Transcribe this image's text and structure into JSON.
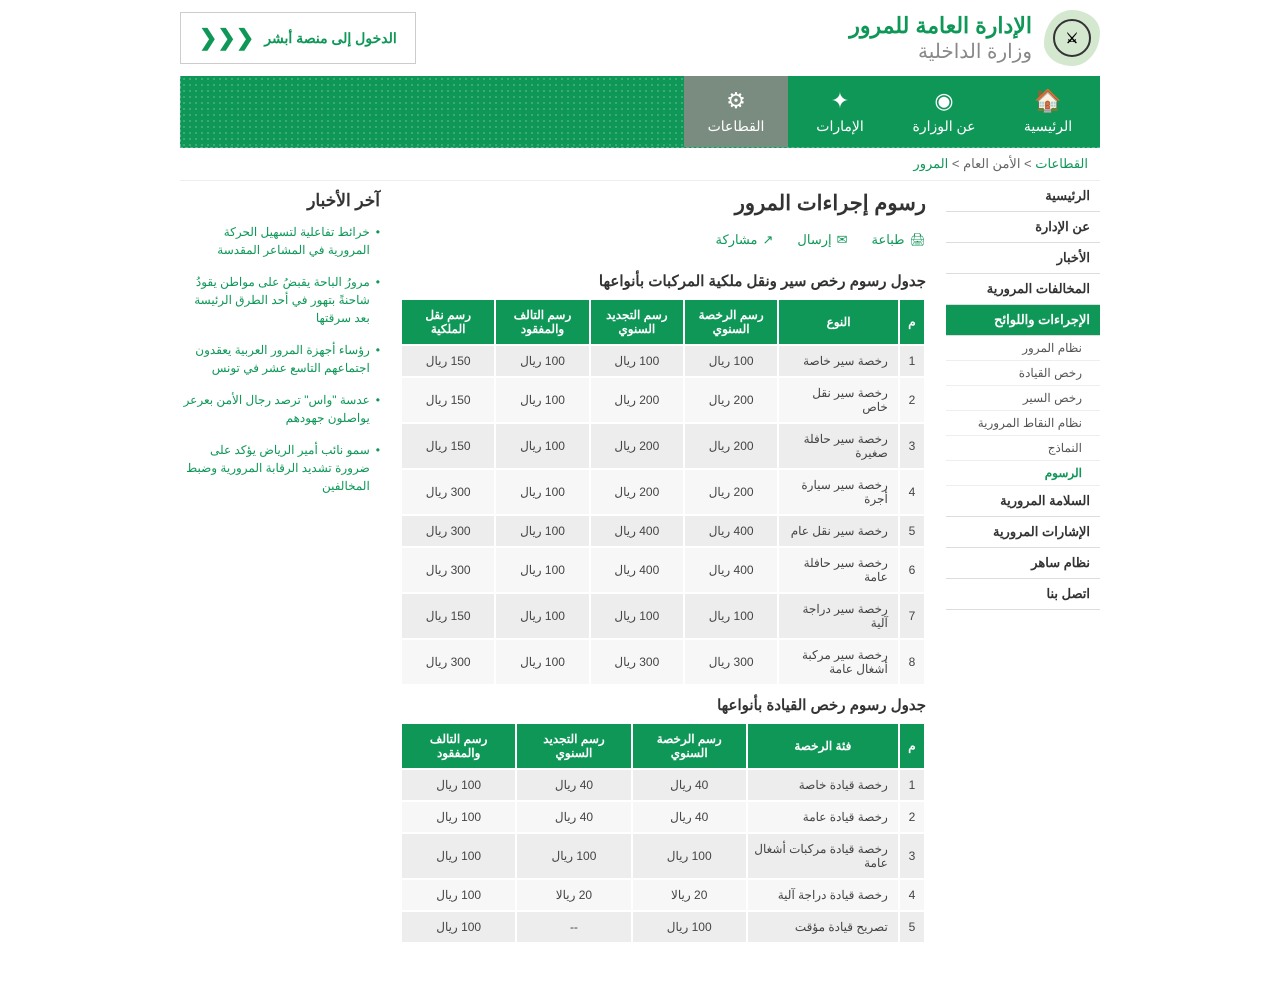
{
  "header": {
    "title1": "الإدارة العامة للمرور",
    "title2": "وزارة الداخلية",
    "absher_label": "الدخول إلى منصة أبشر"
  },
  "nav": {
    "items": [
      {
        "label": "الرئيسية",
        "icon": "🏠"
      },
      {
        "label": "عن الوزارة",
        "icon": "◉"
      },
      {
        "label": "الإمارات",
        "icon": "✦"
      },
      {
        "label": "القطاعات",
        "icon": "⚙",
        "active": true
      }
    ]
  },
  "breadcrumb": {
    "parts": [
      "القطاعات",
      "الأمن العام",
      "المرور"
    ]
  },
  "sidebar": {
    "items": [
      {
        "label": "الرئيسية"
      },
      {
        "label": "عن الإدارة"
      },
      {
        "label": "الأخبار"
      },
      {
        "label": "المخالفات المرورية"
      },
      {
        "label": "الإجراءات واللوائح",
        "active": true,
        "subs": [
          {
            "label": "نظام المرور"
          },
          {
            "label": "رخص القيادة"
          },
          {
            "label": "رخص السير"
          },
          {
            "label": "نظام النقاط المرورية"
          },
          {
            "label": "النماذج"
          },
          {
            "label": "الرسوم",
            "sub_active": true
          }
        ]
      },
      {
        "label": "السلامة المرورية"
      },
      {
        "label": "الإشارات المرورية"
      },
      {
        "label": "نظام ساهر"
      },
      {
        "label": "اتصل بنا"
      }
    ]
  },
  "page": {
    "title": "رسوم إجراءات المرور",
    "actions": [
      {
        "label": "طباعة",
        "icon": "🖨"
      },
      {
        "label": "إرسال",
        "icon": "✉"
      },
      {
        "label": "مشاركة",
        "icon": "↗"
      }
    ]
  },
  "table1": {
    "title": "جدول رسوم رخص سير ونقل ملكية المركبات بأنواعها",
    "headers": [
      "م",
      "النوع",
      "رسم الرخصة السنوي",
      "رسم التجديد السنوي",
      "رسم التالف والمفقود",
      "رسم نقل الملكية"
    ],
    "rows": [
      [
        "1",
        "رخصة سير خاصة",
        "100 ريال",
        "100 ريال",
        "100 ريال",
        "150 ريال"
      ],
      [
        "2",
        "رخصة سير نقل خاص",
        "200 ريال",
        "200 ريال",
        "100 ريال",
        "150 ريال"
      ],
      [
        "3",
        "رخصة سير حافلة صغيرة",
        "200 ريال",
        "200 ريال",
        "100 ريال",
        "150 ريال"
      ],
      [
        "4",
        "رخصة سير سيارة أجرة",
        "200 ريال",
        "200 ريال",
        "100 ريال",
        "300 ريال"
      ],
      [
        "5",
        "رخصة سير نقل عام",
        "400 ريال",
        "400 ريال",
        "100 ريال",
        "300 ريال"
      ],
      [
        "6",
        "رخصة سير حافلة عامة",
        "400 ريال",
        "400 ريال",
        "100 ريال",
        "300 ريال"
      ],
      [
        "7",
        "رخصة سير دراجة آلية",
        "100 ريال",
        "100 ريال",
        "100 ريال",
        "150 ريال"
      ],
      [
        "8",
        "رخصة سير مركبة أشغال عامة",
        "300 ريال",
        "300 ريال",
        "100 ريال",
        "300 ريال"
      ]
    ],
    "col_widths": [
      "5%",
      "23%",
      "18%",
      "18%",
      "18%",
      "18%"
    ]
  },
  "table2": {
    "title": "جدول رسوم رخص القيادة بأنواعها",
    "headers": [
      "م",
      "فئة الرخصة",
      "رسم الرخصة السنوي",
      "رسم التجديد السنوي",
      "رسم التالف والمفقود"
    ],
    "rows": [
      [
        "1",
        "رخصة قيادة خاصة",
        "40 ريال",
        "40 ريال",
        "100 ريال"
      ],
      [
        "2",
        "رخصة قيادة عامة",
        "40 ريال",
        "40 ريال",
        "100 ريال"
      ],
      [
        "3",
        "رخصة قيادة مركبات أشغال عامة",
        "100 ريال",
        "100 ريال",
        "100 ريال"
      ],
      [
        "4",
        "رخصة قيادة دراجة آلية",
        "20 ريالا",
        "20 ريالا",
        "100 ريال"
      ],
      [
        "5",
        "تصريح قيادة مؤقت",
        "100 ريال",
        "--",
        "100 ريال"
      ]
    ],
    "col_widths": [
      "5%",
      "29%",
      "22%",
      "22%",
      "22%"
    ]
  },
  "news": {
    "title": "آخر الأخبار",
    "items": [
      "خرائط تفاعلية لتسهيل الحركة المرورية في المشاعر المقدسة",
      "مرورُ الباحة يقبضُ على مواطن يقودُ شاحنةً بتهور في أحد الطرق الرئيسة بعد سرقتها",
      "رؤساء أجهزة المرور العربية يعقدون اجتماعهم التاسع عشر في تونس",
      "عدسة \"واس\" ترصد رجال الأمن بعرعر يواصلون جهودهم",
      "سمو نائب أمير الرياض يؤكد على ضرورة تشديد الرقابة المرورية وضبط المخالفين"
    ]
  },
  "colors": {
    "primary": "#0f9758",
    "nav_active": "#7a8b7f",
    "row_odd": "#ededed",
    "row_even": "#f7f7f7"
  }
}
